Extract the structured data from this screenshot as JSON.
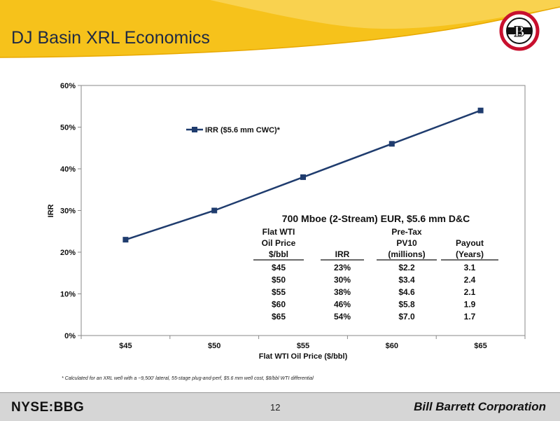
{
  "slide": {
    "title": "DJ Basin XRL Economics",
    "footnote": "* Calculated for an XRL well with a ~9,500' lateral, 55-stage plug-and-perf, $5.6 mm well cost, $8/bbl WTI differential",
    "page_number": "12",
    "ticker": "NYSE:BBG",
    "company": "Bill Barrett Corporation",
    "logo_letter": "B",
    "colors": {
      "header_yellow": "#f6c21b",
      "header_light": "#fbe07a",
      "series_line": "#1f3c6e",
      "logo_red": "#c8102e",
      "footer_gray": "#d6d6d6"
    }
  },
  "chart_data": {
    "type": "line",
    "categories": [
      "$45",
      "$50",
      "$55",
      "$60",
      "$65"
    ],
    "series": [
      {
        "name": "IRR ($5.6 mm CWC)*",
        "values": [
          23,
          30,
          38,
          46,
          54
        ]
      }
    ],
    "xlabel": "Flat WTI Oil Price ($/bbl)",
    "ylabel": "IRR",
    "ylim": [
      0,
      60
    ],
    "yticks": [
      "0%",
      "10%",
      "20%",
      "30%",
      "40%",
      "50%",
      "60%"
    ],
    "grid": false,
    "legend": "top-left",
    "table": {
      "title": "700 Mboe (2-Stream) EUR, $5.6 mm D&C",
      "headers": [
        [
          "Flat WTI",
          "Oil Price",
          "$/bbl"
        ],
        [
          "IRR"
        ],
        [
          "Pre-Tax",
          "PV10",
          "(millions)"
        ],
        [
          "Payout",
          "(Years)"
        ]
      ],
      "rows": [
        [
          "$45",
          "23%",
          "$2.2",
          "3.1"
        ],
        [
          "$50",
          "30%",
          "$3.4",
          "2.4"
        ],
        [
          "$55",
          "38%",
          "$4.6",
          "2.1"
        ],
        [
          "$60",
          "46%",
          "$5.8",
          "1.9"
        ],
        [
          "$65",
          "54%",
          "$7.0",
          "1.7"
        ]
      ]
    }
  }
}
